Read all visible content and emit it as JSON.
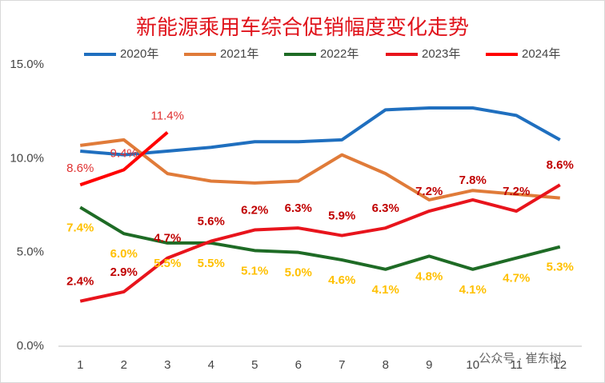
{
  "chart_data": {
    "type": "line",
    "title": "新能源乘用车综合促销幅度变化走势",
    "categories": [
      "1",
      "2",
      "3",
      "4",
      "5",
      "6",
      "7",
      "8",
      "9",
      "10",
      "11",
      "12"
    ],
    "series": [
      {
        "name": "2020年",
        "color": "#1f6fbf",
        "values": [
          10.4,
          10.2,
          10.4,
          10.6,
          10.9,
          10.9,
          11.0,
          12.6,
          12.7,
          12.7,
          12.3,
          11.0
        ]
      },
      {
        "name": "2021年",
        "color": "#e07b39",
        "values": [
          10.7,
          11.0,
          9.2,
          8.8,
          8.7,
          8.8,
          10.2,
          9.2,
          7.8,
          8.3,
          8.1,
          7.9
        ]
      },
      {
        "name": "2022年",
        "color": "#1e6b25",
        "values": [
          7.4,
          6.0,
          5.5,
          5.5,
          5.1,
          5.0,
          4.6,
          4.1,
          4.8,
          4.1,
          4.7,
          5.3
        ],
        "value_labels": [
          "7.4%",
          "6.0%",
          "5.5%",
          "5.5%",
          "5.1%",
          "5.0%",
          "4.6%",
          "4.1%",
          "4.8%",
          "4.1%",
          "4.7%",
          "5.3%"
        ],
        "label_color": "#ffc000"
      },
      {
        "name": "2023年",
        "color": "#e8141c",
        "values": [
          2.4,
          2.9,
          4.7,
          5.6,
          6.2,
          6.3,
          5.9,
          6.3,
          7.2,
          7.8,
          7.2,
          8.6
        ],
        "value_labels": [
          "2.4%",
          "2.9%",
          "4.7%",
          "5.6%",
          "6.2%",
          "6.3%",
          "5.9%",
          "6.3%",
          "7.2%",
          "7.8%",
          "7.2%",
          "8.6%"
        ],
        "label_color": "#c00000"
      },
      {
        "name": "2024年",
        "color": "#ff0000",
        "values": [
          8.6,
          9.4,
          11.4,
          null,
          null,
          null,
          null,
          null,
          null,
          null,
          null,
          null
        ],
        "value_labels": [
          "8.6%",
          "9.4%",
          "11.4%",
          null,
          null,
          null,
          null,
          null,
          null,
          null,
          null,
          null
        ],
        "label_color": "#e03030"
      }
    ],
    "ylim": [
      0,
      15
    ],
    "yticks": [
      {
        "value": 0,
        "label": "0.0%"
      },
      {
        "value": 5,
        "label": "5.0%"
      },
      {
        "value": 10,
        "label": "10.0%"
      },
      {
        "value": 15,
        "label": "15.0%"
      }
    ],
    "grid": false,
    "legend": "top",
    "watermark": "公众号 · 崔东树"
  }
}
